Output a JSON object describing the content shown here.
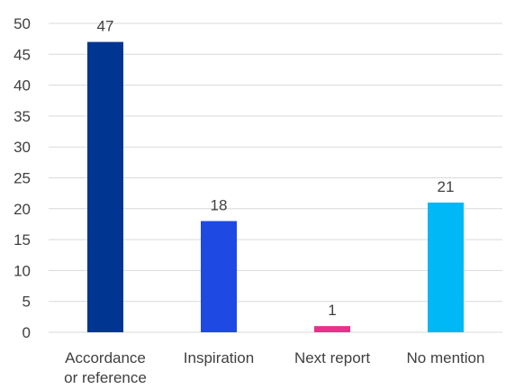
{
  "chart_data": {
    "type": "bar",
    "title": "",
    "xlabel": "",
    "ylabel": "",
    "categories": [
      [
        "Accordance",
        "or reference"
      ],
      [
        "Inspiration"
      ],
      [
        "Next report"
      ],
      [
        "No mention"
      ]
    ],
    "values": [
      47,
      18,
      1,
      21
    ],
    "colors": [
      "#003591",
      "#1e49e2",
      "#e7318a",
      "#00b8f5"
    ],
    "ylim": [
      0,
      50
    ],
    "yticks": [
      0,
      5,
      10,
      15,
      20,
      25,
      30,
      35,
      40,
      45,
      50
    ],
    "grid": true,
    "legend": "none",
    "data_labels": true
  }
}
